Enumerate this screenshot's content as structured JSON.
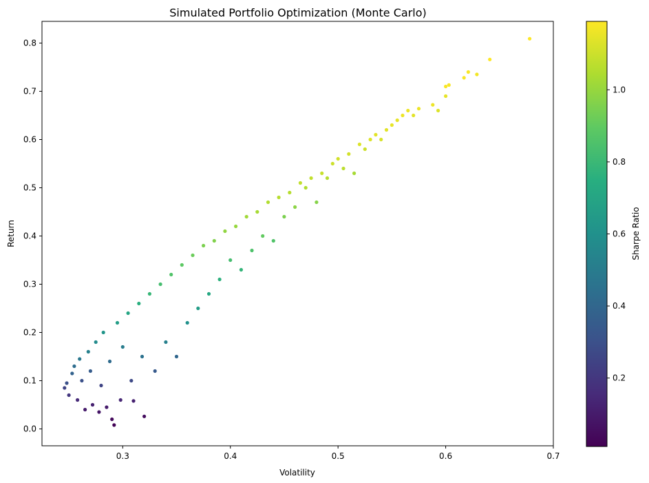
{
  "chart_data": {
    "type": "scatter",
    "title": "Simulated Portfolio Optimization (Monte Carlo)",
    "xlabel": "Volatility",
    "ylabel": "Return",
    "xlim": [
      0.225,
      0.7
    ],
    "ylim": [
      -0.035,
      0.845
    ],
    "xticks": [
      "0.3",
      "0.4",
      "0.5",
      "0.6",
      "0.7"
    ],
    "xtick_values": [
      0.3,
      0.4,
      0.5,
      0.6,
      0.7
    ],
    "yticks": [
      "0.0",
      "0.1",
      "0.2",
      "0.3",
      "0.4",
      "0.5",
      "0.6",
      "0.7",
      "0.8"
    ],
    "ytick_values": [
      0.0,
      0.1,
      0.2,
      0.3,
      0.4,
      0.5,
      0.6,
      0.7,
      0.8
    ],
    "colorbar": {
      "label": "Sharpe Ratio",
      "colormap": "viridis",
      "range": [
        0.01,
        1.19
      ],
      "ticks": [
        "0.2",
        "0.4",
        "0.6",
        "0.8",
        "1.0"
      ],
      "tick_values": [
        0.2,
        0.4,
        0.6,
        0.8,
        1.0
      ]
    },
    "grid": false,
    "series": [
      {
        "points": [
          {
            "x": 0.246,
            "y": 0.085,
            "c": 0.25
          },
          {
            "x": 0.248,
            "y": 0.095,
            "c": 0.3
          },
          {
            "x": 0.25,
            "y": 0.07,
            "c": 0.2
          },
          {
            "x": 0.253,
            "y": 0.115,
            "c": 0.38
          },
          {
            "x": 0.255,
            "y": 0.13,
            "c": 0.43
          },
          {
            "x": 0.258,
            "y": 0.06,
            "c": 0.15
          },
          {
            "x": 0.26,
            "y": 0.145,
            "c": 0.48
          },
          {
            "x": 0.262,
            "y": 0.1,
            "c": 0.3
          },
          {
            "x": 0.265,
            "y": 0.04,
            "c": 0.1
          },
          {
            "x": 0.268,
            "y": 0.16,
            "c": 0.52
          },
          {
            "x": 0.27,
            "y": 0.12,
            "c": 0.35
          },
          {
            "x": 0.272,
            "y": 0.05,
            "c": 0.12
          },
          {
            "x": 0.275,
            "y": 0.18,
            "c": 0.57
          },
          {
            "x": 0.278,
            "y": 0.035,
            "c": 0.08
          },
          {
            "x": 0.28,
            "y": 0.09,
            "c": 0.25
          },
          {
            "x": 0.282,
            "y": 0.2,
            "c": 0.62
          },
          {
            "x": 0.285,
            "y": 0.045,
            "c": 0.1
          },
          {
            "x": 0.288,
            "y": 0.14,
            "c": 0.42
          },
          {
            "x": 0.29,
            "y": 0.02,
            "c": 0.04
          },
          {
            "x": 0.292,
            "y": 0.008,
            "c": 0.02
          },
          {
            "x": 0.295,
            "y": 0.22,
            "c": 0.66
          },
          {
            "x": 0.298,
            "y": 0.06,
            "c": 0.14
          },
          {
            "x": 0.3,
            "y": 0.17,
            "c": 0.5
          },
          {
            "x": 0.305,
            "y": 0.24,
            "c": 0.7
          },
          {
            "x": 0.308,
            "y": 0.1,
            "c": 0.27
          },
          {
            "x": 0.31,
            "y": 0.058,
            "c": 0.12
          },
          {
            "x": 0.315,
            "y": 0.26,
            "c": 0.75
          },
          {
            "x": 0.318,
            "y": 0.15,
            "c": 0.45
          },
          {
            "x": 0.32,
            "y": 0.026,
            "c": 0.05
          },
          {
            "x": 0.325,
            "y": 0.28,
            "c": 0.79
          },
          {
            "x": 0.33,
            "y": 0.12,
            "c": 0.34
          },
          {
            "x": 0.335,
            "y": 0.3,
            "c": 0.83
          },
          {
            "x": 0.34,
            "y": 0.18,
            "c": 0.52
          },
          {
            "x": 0.345,
            "y": 0.32,
            "c": 0.86
          },
          {
            "x": 0.35,
            "y": 0.15,
            "c": 0.4
          },
          {
            "x": 0.355,
            "y": 0.34,
            "c": 0.89
          },
          {
            "x": 0.36,
            "y": 0.22,
            "c": 0.6
          },
          {
            "x": 0.365,
            "y": 0.36,
            "c": 0.92
          },
          {
            "x": 0.37,
            "y": 0.25,
            "c": 0.66
          },
          {
            "x": 0.375,
            "y": 0.38,
            "c": 0.95
          },
          {
            "x": 0.38,
            "y": 0.28,
            "c": 0.71
          },
          {
            "x": 0.385,
            "y": 0.39,
            "c": 0.96
          },
          {
            "x": 0.39,
            "y": 0.31,
            "c": 0.76
          },
          {
            "x": 0.395,
            "y": 0.41,
            "c": 0.99
          },
          {
            "x": 0.4,
            "y": 0.35,
            "c": 0.83
          },
          {
            "x": 0.405,
            "y": 0.42,
            "c": 1.0
          },
          {
            "x": 0.41,
            "y": 0.33,
            "c": 0.78
          },
          {
            "x": 0.415,
            "y": 0.44,
            "c": 1.02
          },
          {
            "x": 0.42,
            "y": 0.37,
            "c": 0.85
          },
          {
            "x": 0.425,
            "y": 0.45,
            "c": 1.03
          },
          {
            "x": 0.43,
            "y": 0.4,
            "c": 0.9
          },
          {
            "x": 0.435,
            "y": 0.47,
            "c": 1.05
          },
          {
            "x": 0.44,
            "y": 0.39,
            "c": 0.86
          },
          {
            "x": 0.445,
            "y": 0.48,
            "c": 1.06
          },
          {
            "x": 0.45,
            "y": 0.44,
            "c": 0.95
          },
          {
            "x": 0.455,
            "y": 0.49,
            "c": 1.06
          },
          {
            "x": 0.46,
            "y": 0.46,
            "c": 0.98
          },
          {
            "x": 0.465,
            "y": 0.51,
            "c": 1.08
          },
          {
            "x": 0.47,
            "y": 0.5,
            "c": 1.05
          },
          {
            "x": 0.475,
            "y": 0.52,
            "c": 1.08
          },
          {
            "x": 0.48,
            "y": 0.47,
            "c": 0.97
          },
          {
            "x": 0.485,
            "y": 0.53,
            "c": 1.09
          },
          {
            "x": 0.49,
            "y": 0.52,
            "c": 1.06
          },
          {
            "x": 0.495,
            "y": 0.55,
            "c": 1.1
          },
          {
            "x": 0.5,
            "y": 0.56,
            "c": 1.11
          },
          {
            "x": 0.505,
            "y": 0.54,
            "c": 1.07
          },
          {
            "x": 0.51,
            "y": 0.57,
            "c": 1.11
          },
          {
            "x": 0.515,
            "y": 0.53,
            "c": 1.03
          },
          {
            "x": 0.52,
            "y": 0.59,
            "c": 1.13
          },
          {
            "x": 0.525,
            "y": 0.58,
            "c": 1.1
          },
          {
            "x": 0.53,
            "y": 0.6,
            "c": 1.13
          },
          {
            "x": 0.535,
            "y": 0.61,
            "c": 1.14
          },
          {
            "x": 0.54,
            "y": 0.6,
            "c": 1.12
          },
          {
            "x": 0.545,
            "y": 0.62,
            "c": 1.14
          },
          {
            "x": 0.55,
            "y": 0.63,
            "c": 1.15
          },
          {
            "x": 0.555,
            "y": 0.64,
            "c": 1.15
          },
          {
            "x": 0.56,
            "y": 0.65,
            "c": 1.16
          },
          {
            "x": 0.565,
            "y": 0.66,
            "c": 1.16
          },
          {
            "x": 0.57,
            "y": 0.65,
            "c": 1.14
          },
          {
            "x": 0.575,
            "y": 0.664,
            "c": 1.16
          },
          {
            "x": 0.588,
            "y": 0.672,
            "c": 1.16
          },
          {
            "x": 0.593,
            "y": 0.66,
            "c": 1.13
          },
          {
            "x": 0.6,
            "y": 0.71,
            "c": 1.18
          },
          {
            "x": 0.6,
            "y": 0.69,
            "c": 1.15
          },
          {
            "x": 0.603,
            "y": 0.713,
            "c": 1.18
          },
          {
            "x": 0.617,
            "y": 0.728,
            "c": 1.18
          },
          {
            "x": 0.621,
            "y": 0.74,
            "c": 1.18
          },
          {
            "x": 0.629,
            "y": 0.735,
            "c": 1.17
          },
          {
            "x": 0.641,
            "y": 0.766,
            "c": 1.19
          },
          {
            "x": 0.678,
            "y": 0.809,
            "c": 1.19
          }
        ]
      }
    ]
  }
}
